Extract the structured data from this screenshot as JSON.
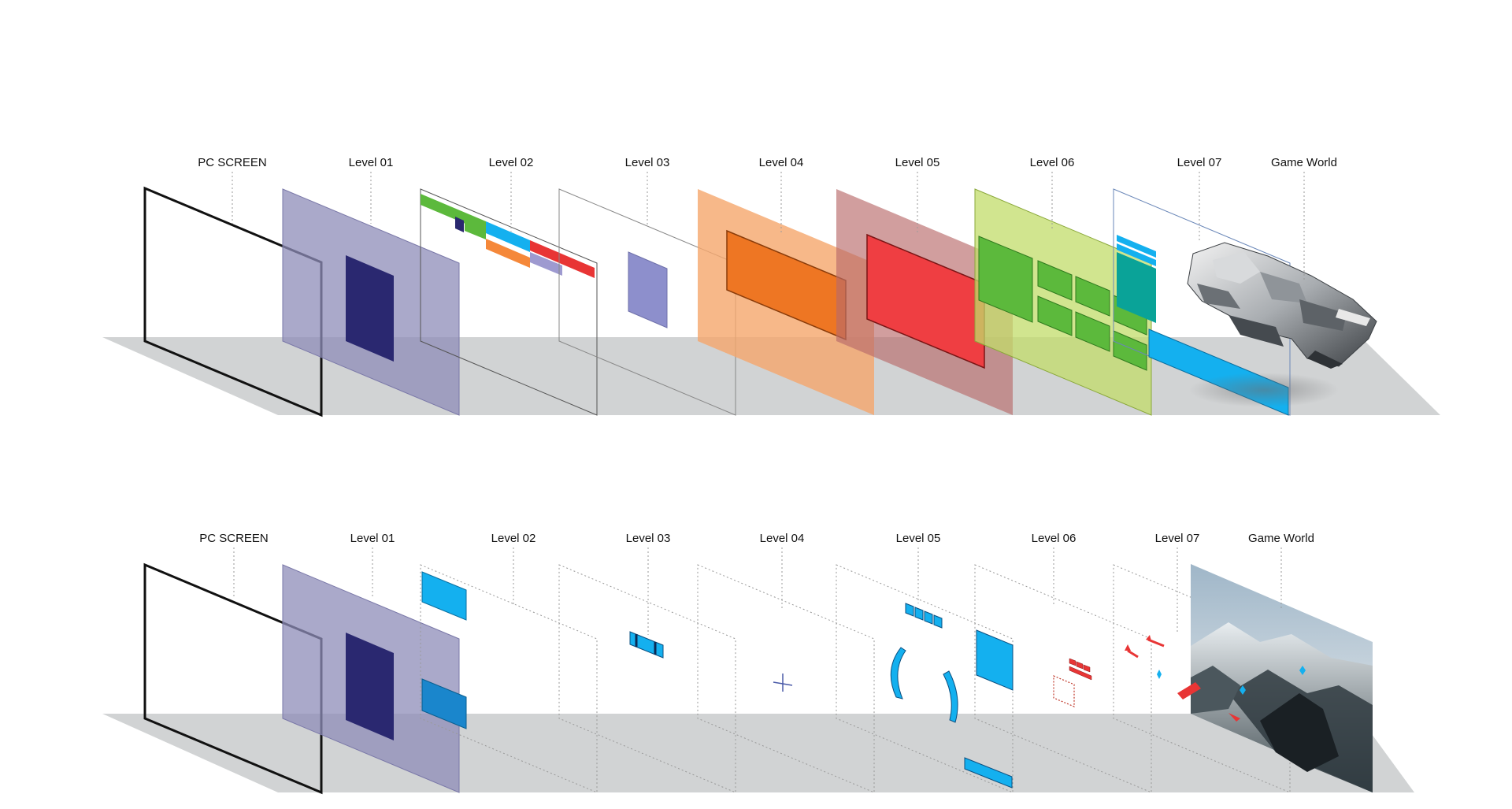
{
  "top_diagram": {
    "labels": [
      "PC SCREEN",
      "Level 01",
      "Level 02",
      "Level 03",
      "Level 04",
      "Level 05",
      "Level 06",
      "Level 07",
      "Game World"
    ]
  },
  "bottom_diagram": {
    "labels": [
      "PC SCREEN",
      "Level 01",
      "Level 02",
      "Level 03",
      "Level 04",
      "Level 05",
      "Level 06",
      "Level 07",
      "Game World"
    ]
  },
  "colors": {
    "floor": "#d1d3d4",
    "level01": "#8e8cb8",
    "level01_block": "#2a2870",
    "level03_block": "#8d8fcc",
    "level04_plane": "#f5a66c",
    "level04_block": "#ee7623",
    "level05_plane": "#c47b7b",
    "level05_block": "#ef3e42",
    "level06_plane": "#c9e07a",
    "level06_block": "#5cb93c",
    "hud_blue": "#14b0ef",
    "hud_teal": "#0aa398",
    "hud_red": "#e83535",
    "orange_bar": "#f5883a",
    "lilac_bar": "#9e9ad0"
  }
}
